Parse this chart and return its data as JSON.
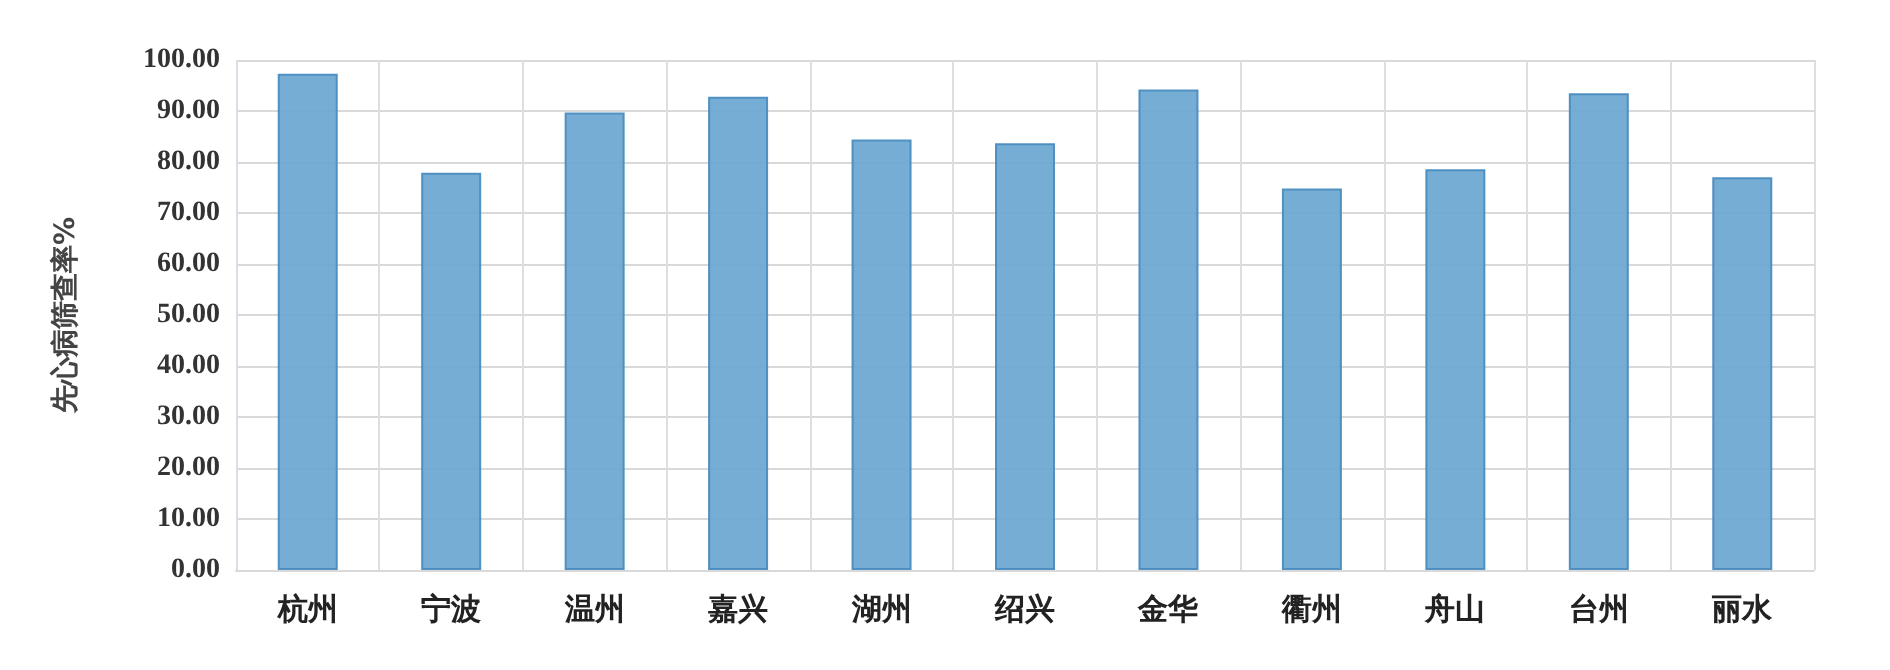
{
  "chart_data": {
    "type": "bar",
    "ylabel": "先心病筛查率%",
    "categories": [
      "杭州",
      "宁波",
      "温州",
      "嘉兴",
      "湖州",
      "绍兴",
      "金华",
      "衢州",
      "舟山",
      "台州",
      "丽水"
    ],
    "values": [
      97.3,
      77.9,
      89.7,
      92.8,
      84.4,
      83.7,
      94.2,
      74.8,
      78.6,
      93.5,
      77.0
    ],
    "color": "#6fa9d2",
    "ylim": [
      0,
      100
    ],
    "yticks": [
      {
        "value": 0,
        "label": "0.00"
      },
      {
        "value": 10,
        "label": "10.00"
      },
      {
        "value": 20,
        "label": "20.00"
      },
      {
        "value": 30,
        "label": "30.00"
      },
      {
        "value": 40,
        "label": "40.00"
      },
      {
        "value": 50,
        "label": "50.00"
      },
      {
        "value": 60,
        "label": "60.00"
      },
      {
        "value": 70,
        "label": "70.00"
      },
      {
        "value": 80,
        "label": "80.00"
      },
      {
        "value": 90,
        "label": "90.00"
      },
      {
        "value": 100,
        "label": "100.00"
      }
    ],
    "grid": true
  }
}
